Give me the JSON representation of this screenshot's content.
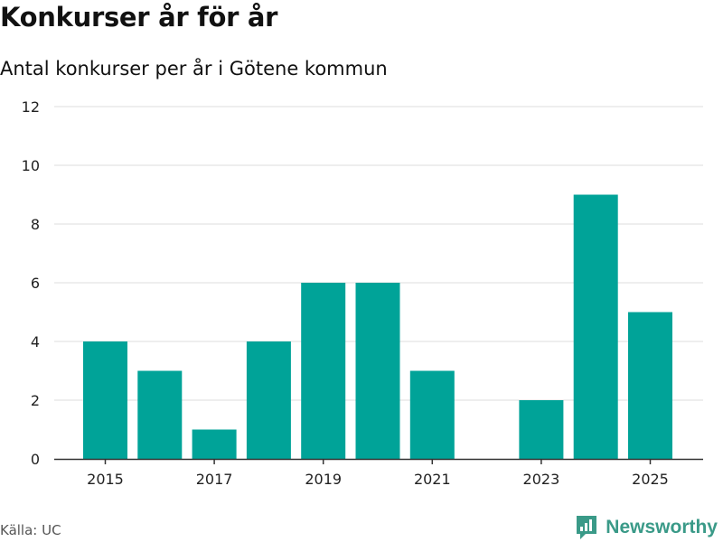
{
  "header": {
    "title": "Konkurser år för år",
    "subtitle": "Antal konkurser per år i Götene kommun"
  },
  "footer": {
    "source": "Källa: UC",
    "brand": "Newsworthy"
  },
  "colors": {
    "bar": "#00a398",
    "grid": "#dddddd",
    "axis": "#333333",
    "brand": "#3a9a88"
  },
  "chart_data": {
    "type": "bar",
    "title": "Konkurser år för år",
    "subtitle": "Antal konkurser per år i Götene kommun",
    "xlabel": "",
    "ylabel": "",
    "categories": [
      "2015",
      "2016",
      "2017",
      "2018",
      "2019",
      "2020",
      "2021",
      "2022",
      "2023",
      "2024",
      "2025"
    ],
    "values": [
      4,
      3,
      1,
      4,
      6,
      6,
      3,
      0,
      2,
      9,
      5
    ],
    "x_tick_labels": [
      "2015",
      "2017",
      "2019",
      "2021",
      "2023",
      "2025"
    ],
    "y_ticks": [
      0,
      2,
      4,
      6,
      8,
      10,
      12
    ],
    "ylim": [
      0,
      12
    ],
    "grid": true,
    "legend": "none"
  }
}
